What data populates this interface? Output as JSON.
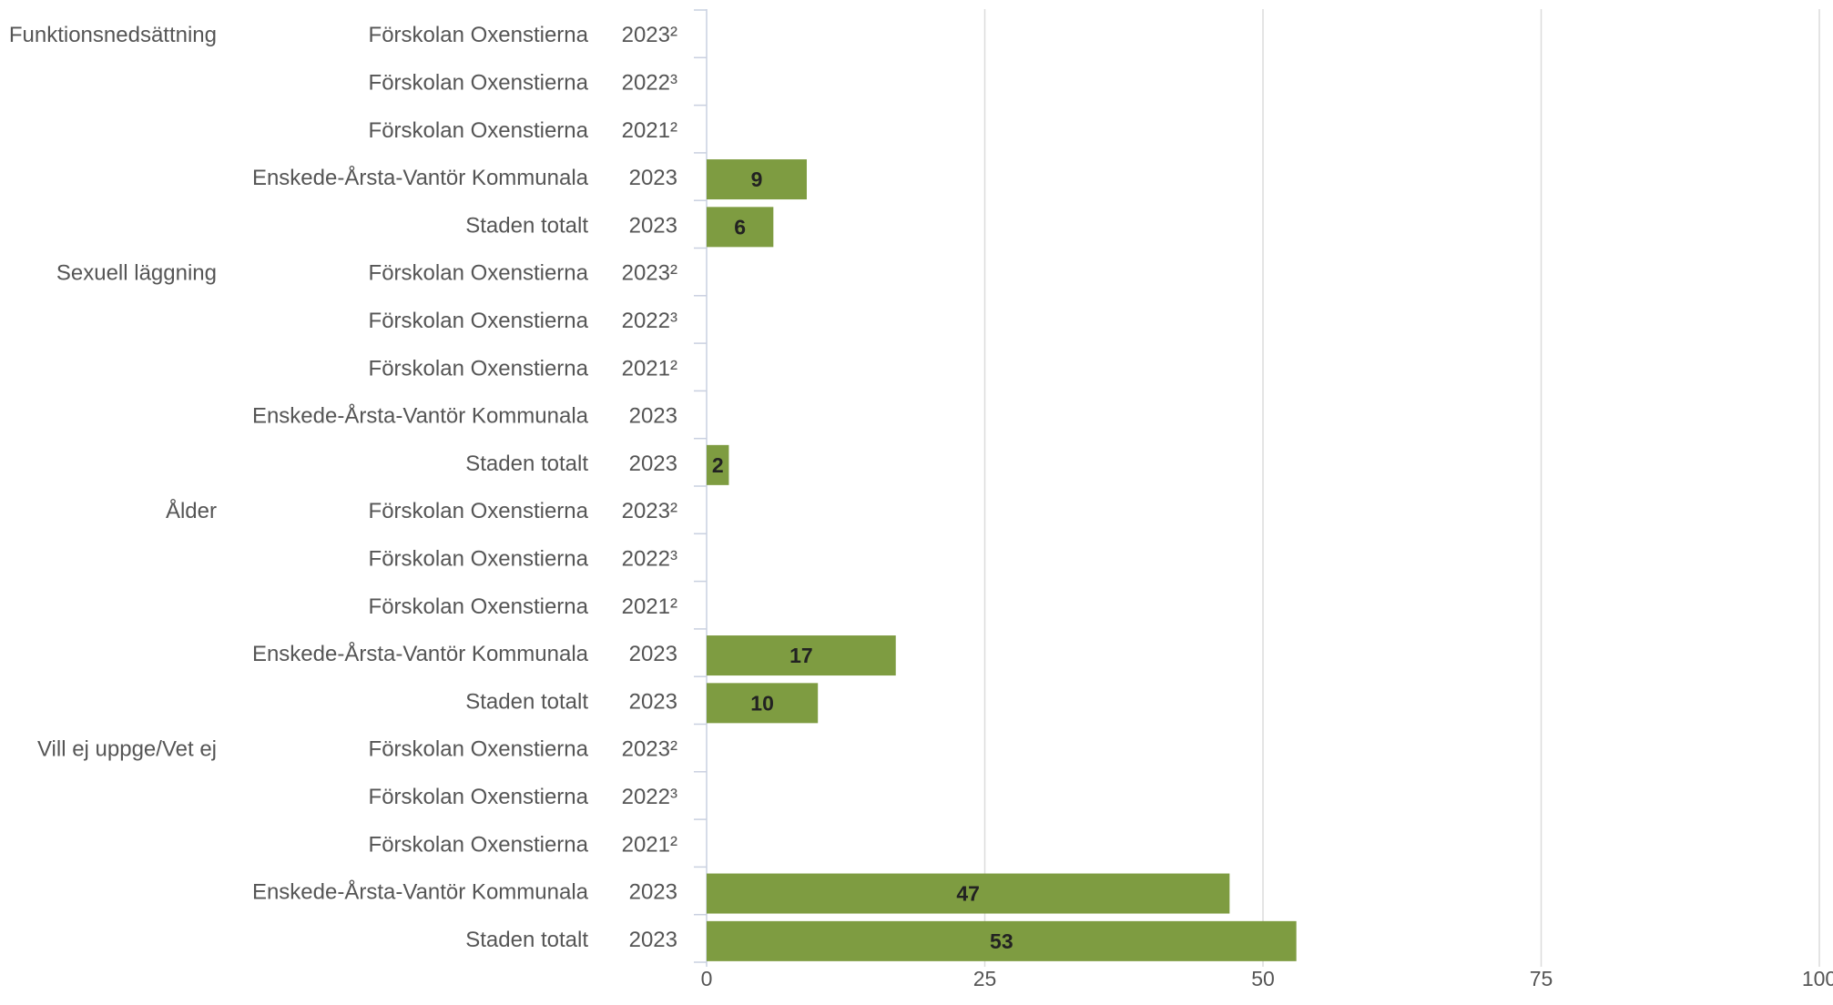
{
  "chart_data": {
    "type": "bar",
    "orientation": "horizontal",
    "bar_color": "#7e9c41",
    "grid": true,
    "xlim": [
      0,
      100
    ],
    "x_ticks": [
      "0",
      "25",
      "50",
      "75",
      "100"
    ],
    "groups": [
      {
        "label": "Funktionsnedsättning",
        "rows": [
          {
            "name": "Förskolan Oxenstierna",
            "year": "2023²",
            "value": null
          },
          {
            "name": "Förskolan Oxenstierna",
            "year": "2022³",
            "value": null
          },
          {
            "name": "Förskolan Oxenstierna",
            "year": "2021²",
            "value": null
          },
          {
            "name": "Enskede-Årsta-Vantör Kommunala",
            "year": "2023",
            "value": 9
          },
          {
            "name": "Staden totalt",
            "year": "2023",
            "value": 6
          }
        ]
      },
      {
        "label": "Sexuell läggning",
        "rows": [
          {
            "name": "Förskolan Oxenstierna",
            "year": "2023²",
            "value": null
          },
          {
            "name": "Förskolan Oxenstierna",
            "year": "2022³",
            "value": null
          },
          {
            "name": "Förskolan Oxenstierna",
            "year": "2021²",
            "value": null
          },
          {
            "name": "Enskede-Årsta-Vantör Kommunala",
            "year": "2023",
            "value": null
          },
          {
            "name": "Staden totalt",
            "year": "2023",
            "value": 2
          }
        ]
      },
      {
        "label": "Ålder",
        "rows": [
          {
            "name": "Förskolan Oxenstierna",
            "year": "2023²",
            "value": null
          },
          {
            "name": "Förskolan Oxenstierna",
            "year": "2022³",
            "value": null
          },
          {
            "name": "Förskolan Oxenstierna",
            "year": "2021²",
            "value": null
          },
          {
            "name": "Enskede-Årsta-Vantör Kommunala",
            "year": "2023",
            "value": 17
          },
          {
            "name": "Staden totalt",
            "year": "2023",
            "value": 10
          }
        ]
      },
      {
        "label": "Vill ej uppge/Vet ej",
        "rows": [
          {
            "name": "Förskolan Oxenstierna",
            "year": "2023²",
            "value": null
          },
          {
            "name": "Förskolan Oxenstierna",
            "year": "2022³",
            "value": null
          },
          {
            "name": "Förskolan Oxenstierna",
            "year": "2021²",
            "value": null
          },
          {
            "name": "Enskede-Årsta-Vantör Kommunala",
            "year": "2023",
            "value": 47
          },
          {
            "name": "Staden totalt",
            "year": "2023",
            "value": 53
          }
        ]
      }
    ]
  }
}
